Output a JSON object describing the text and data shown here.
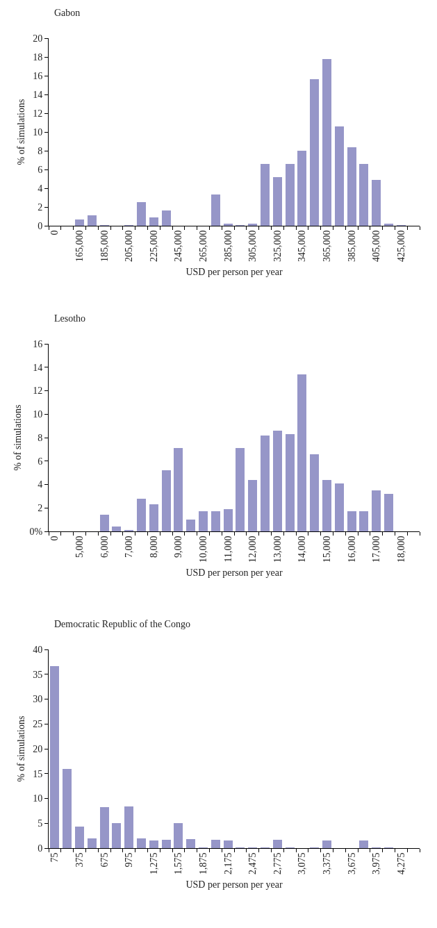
{
  "chart_data": [
    {
      "type": "bar",
      "title": "Gabon",
      "xlabel": "USD per person per year",
      "ylabel": "% of simulations",
      "color": "#9696c8",
      "categories": [
        "0",
        null,
        "165,000",
        null,
        "185,000",
        null,
        "205,000",
        null,
        "225,000",
        null,
        "245,000",
        null,
        "265,000",
        null,
        "285,000",
        null,
        "305,000",
        null,
        "325,000",
        null,
        "345,000",
        null,
        "365,000",
        null,
        "385,000",
        null,
        "405,000",
        null,
        "425,000",
        null
      ],
      "values": [
        0,
        0,
        0.7,
        1.1,
        0.05,
        0,
        0.1,
        2.5,
        0.9,
        1.6,
        0,
        0,
        0,
        3.3,
        0.2,
        0.1,
        0.2,
        6.6,
        5.2,
        6.6,
        8.0,
        15.6,
        17.8,
        10.6,
        8.4,
        6.6,
        4.9,
        0.2,
        0.05,
        0
      ],
      "ylim": [
        0,
        20
      ],
      "yticks": [
        0,
        2,
        4,
        6,
        8,
        10,
        12,
        14,
        16,
        18,
        20
      ]
    },
    {
      "type": "bar",
      "title": "Lesotho",
      "xlabel": "USD per person per year",
      "ylabel": "% of simulations",
      "color": "#9696c8",
      "categories": [
        "0",
        null,
        "5,000",
        null,
        "6,000",
        null,
        "7,000",
        null,
        "8,000",
        null,
        "9,000",
        null,
        "10,000",
        null,
        "11,000",
        null,
        "12,000",
        null,
        "13,000",
        null,
        "14,000",
        null,
        "15,000",
        null,
        "16,000",
        null,
        "17,000",
        null,
        "18,000",
        null
      ],
      "values": [
        0,
        0,
        0,
        0,
        1.4,
        0.4,
        0.1,
        2.8,
        2.3,
        5.2,
        7.1,
        1.0,
        1.7,
        1.7,
        1.9,
        7.1,
        4.4,
        8.2,
        8.6,
        8.3,
        13.4,
        6.6,
        4.4,
        4.1,
        1.7,
        1.7,
        3.5,
        3.2,
        0,
        0
      ],
      "ylim": [
        0,
        16
      ],
      "yticks": [
        {
          "value": 0,
          "label": "0%"
        },
        2,
        4,
        6,
        8,
        10,
        12,
        14,
        16
      ]
    },
    {
      "type": "bar",
      "title": "Democratic Republic of the Congo",
      "xlabel": "USD per person per year",
      "ylabel": "% of simulations",
      "color": "#9696c8",
      "categories": [
        "75",
        null,
        "375",
        null,
        "675",
        null,
        "975",
        null,
        "1,275",
        null,
        "1,575",
        null,
        "1,875",
        null,
        "2,175",
        null,
        "2,475",
        null,
        "2,775",
        null,
        "3,075",
        null,
        "3,375",
        null,
        "3,675",
        null,
        "3,975",
        null,
        "4,275",
        null
      ],
      "values": [
        36.6,
        15.9,
        4.3,
        1.9,
        8.3,
        5.1,
        8.4,
        1.9,
        1.6,
        1.7,
        5.0,
        1.8,
        0.2,
        1.7,
        1.6,
        0.15,
        0.15,
        0.15,
        1.7,
        0.15,
        0,
        0.15,
        1.6,
        0,
        0,
        1.6,
        0.15,
        0.15,
        0,
        0
      ],
      "ylim": [
        0,
        40
      ],
      "yticks": [
        0,
        5,
        10,
        15,
        20,
        25,
        30,
        35,
        40
      ]
    }
  ]
}
